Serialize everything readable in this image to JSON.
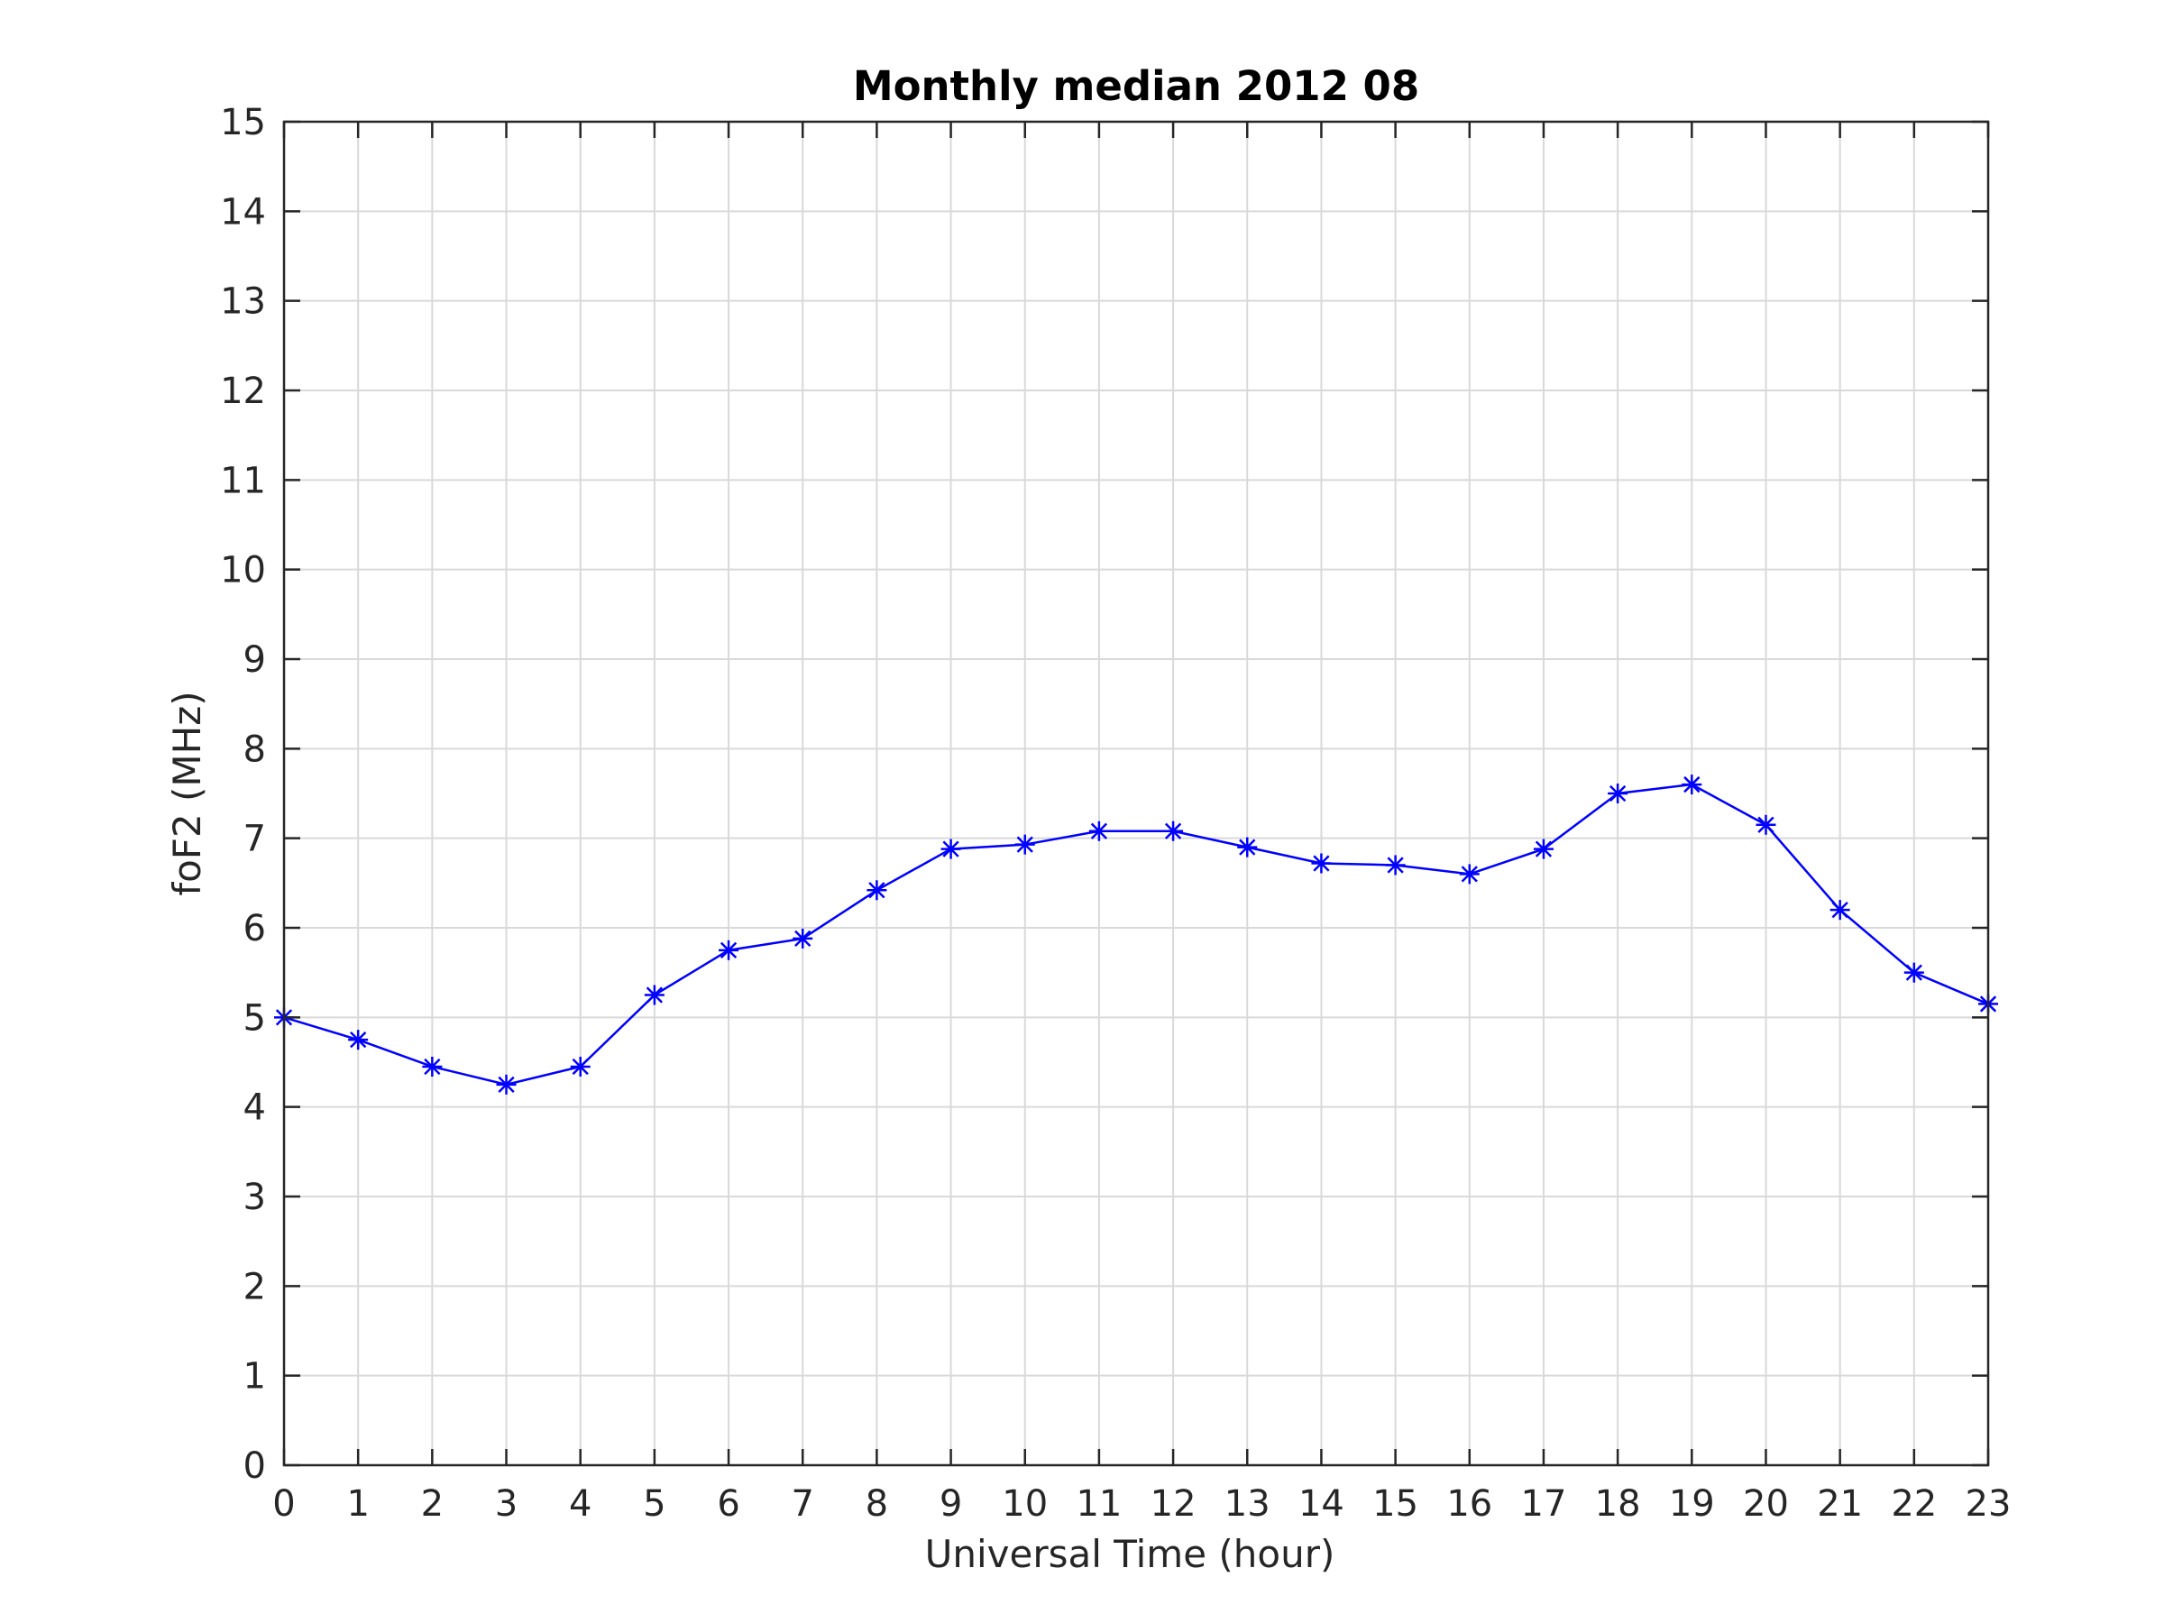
{
  "chart_data": {
    "type": "line",
    "title": "Monthly median 2012 08",
    "xlabel": "Universal Time (hour)",
    "ylabel": "foF2 (MHz)",
    "xlim": [
      0,
      23
    ],
    "ylim": [
      0,
      15
    ],
    "xticks": [
      0,
      1,
      2,
      3,
      4,
      5,
      6,
      7,
      8,
      9,
      10,
      11,
      12,
      13,
      14,
      15,
      16,
      17,
      18,
      19,
      20,
      21,
      22,
      23
    ],
    "yticks": [
      0,
      1,
      2,
      3,
      4,
      5,
      6,
      7,
      8,
      9,
      10,
      11,
      12,
      13,
      14,
      15
    ],
    "grid": true,
    "series": [
      {
        "color": "#0000ff",
        "marker": "asterisk",
        "x": [
          0,
          1,
          2,
          3,
          4,
          5,
          6,
          7,
          8,
          9,
          10,
          11,
          12,
          13,
          14,
          15,
          16,
          17,
          18,
          19,
          20,
          21,
          22,
          23
        ],
        "values": [
          5.0,
          4.75,
          4.45,
          4.25,
          4.45,
          5.25,
          5.75,
          5.88,
          6.42,
          6.88,
          6.93,
          7.08,
          7.08,
          6.9,
          6.72,
          6.7,
          6.6,
          6.88,
          7.5,
          7.6,
          7.15,
          6.2,
          5.5,
          5.15
        ]
      }
    ]
  }
}
